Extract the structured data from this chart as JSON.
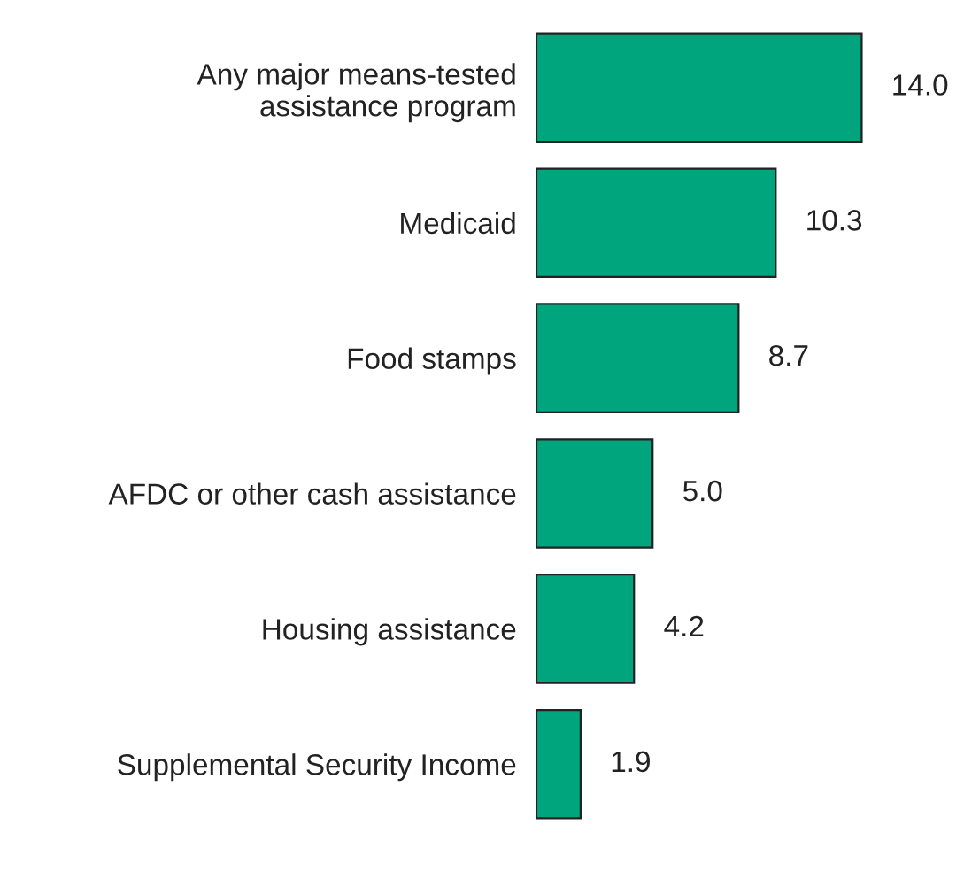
{
  "chart_data": {
    "type": "bar",
    "orientation": "horizontal",
    "categories": [
      "Any major means-tested\nassistance program",
      "Medicaid",
      "Food stamps",
      "AFDC or other cash assistance",
      "Housing assistance",
      "Supplemental Security Income"
    ],
    "values": [
      14.0,
      10.3,
      8.7,
      5.0,
      4.2,
      1.9
    ],
    "value_labels": [
      "14.0",
      "10.3",
      "8.7",
      "5.0",
      "4.2",
      "1.9"
    ],
    "color": "#00a57d",
    "grid": false
  }
}
